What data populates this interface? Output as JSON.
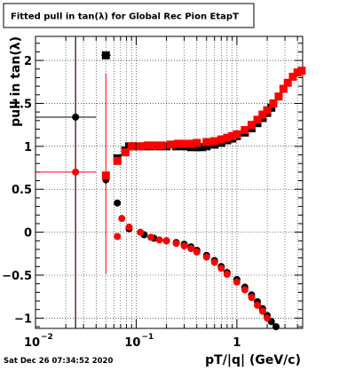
{
  "canvas": {
    "title": "Fitted pull in tan(λ) for Global Rec Pion EtapT",
    "timestamp": "Sat Dec 26 07:34:52 2020"
  },
  "colors": {
    "series_black": "#000000",
    "series_red": "#ff0000",
    "grid": "#000000",
    "background": "#ffffff"
  },
  "chart_data": {
    "type": "scatter",
    "title": "Fitted pull in tan(λ) for Global Rec Pion EtapT",
    "xlabel": "pT/|q| (GeV/c)",
    "ylabel": "pull in tan(λ)",
    "x_scale": "log",
    "xlim": [
      0.01,
      4.5
    ],
    "ylim": [
      -1.12,
      2.28
    ],
    "grid": true,
    "x_ticks": [
      {
        "value": 0.01,
        "base": "10",
        "exp": "−2"
      },
      {
        "value": 0.1,
        "base": "10",
        "exp": "−1"
      },
      {
        "value": 1,
        "base": "1",
        "exp": ""
      }
    ],
    "y_ticks": [
      {
        "value": -1,
        "label": "−1"
      },
      {
        "value": -0.5,
        "label": "−0.5"
      },
      {
        "value": 0,
        "label": "0"
      },
      {
        "value": 0.5,
        "label": "0.5"
      },
      {
        "value": 1,
        "label": "1"
      },
      {
        "value": 1.5,
        "label": "1.5"
      },
      {
        "value": 2,
        "label": "2"
      }
    ],
    "series": [
      {
        "color": "black",
        "marker_square": "square",
        "marker_circle": "circle",
        "squares": [
          {
            "x": 0.05,
            "y": 2.06
          },
          {
            "x": 0.065,
            "y": 0.86
          },
          {
            "x": 0.078,
            "y": 0.95
          },
          {
            "x": 0.085,
            "y": 1.0
          },
          {
            "x": 0.093,
            "y": 1.0
          },
          {
            "x": 0.1,
            "y": 1.0
          },
          {
            "x": 0.12,
            "y": 1.0
          },
          {
            "x": 0.14,
            "y": 1.0
          },
          {
            "x": 0.17,
            "y": 1.0
          },
          {
            "x": 0.2,
            "y": 1.0
          },
          {
            "x": 0.25,
            "y": 1.0
          },
          {
            "x": 0.3,
            "y": 1.0
          },
          {
            "x": 0.35,
            "y": 0.99
          },
          {
            "x": 0.4,
            "y": 0.99
          },
          {
            "x": 0.45,
            "y": 0.99
          },
          {
            "x": 0.5,
            "y": 1.0
          },
          {
            "x": 0.6,
            "y": 1.02
          },
          {
            "x": 0.7,
            "y": 1.04
          },
          {
            "x": 0.8,
            "y": 1.07
          },
          {
            "x": 0.9,
            "y": 1.09
          },
          {
            "x": 1.0,
            "y": 1.12
          },
          {
            "x": 1.2,
            "y": 1.16
          },
          {
            "x": 1.4,
            "y": 1.21
          },
          {
            "x": 1.6,
            "y": 1.27
          },
          {
            "x": 1.8,
            "y": 1.33
          },
          {
            "x": 2.0,
            "y": 1.39
          },
          {
            "x": 2.2,
            "y": 1.45
          }
        ],
        "circles": [
          {
            "x": 0.025,
            "y": 1.34
          },
          {
            "x": 0.05,
            "y": 0.61
          },
          {
            "x": 0.065,
            "y": 0.34
          },
          {
            "x": 0.085,
            "y": 0.04
          },
          {
            "x": 0.12,
            "y": -0.03
          },
          {
            "x": 0.15,
            "y": -0.07
          },
          {
            "x": 0.2,
            "y": -0.1
          },
          {
            "x": 0.25,
            "y": -0.12
          },
          {
            "x": 0.3,
            "y": -0.14
          },
          {
            "x": 0.35,
            "y": -0.17
          },
          {
            "x": 0.4,
            "y": -0.21
          },
          {
            "x": 0.5,
            "y": -0.27
          },
          {
            "x": 0.6,
            "y": -0.33
          },
          {
            "x": 0.7,
            "y": -0.4
          },
          {
            "x": 0.8,
            "y": -0.47
          },
          {
            "x": 1.0,
            "y": -0.55
          },
          {
            "x": 1.2,
            "y": -0.64
          },
          {
            "x": 1.4,
            "y": -0.73
          },
          {
            "x": 1.6,
            "y": -0.81
          },
          {
            "x": 1.8,
            "y": -0.89
          },
          {
            "x": 2.0,
            "y": -0.97
          },
          {
            "x": 2.2,
            "y": -1.04
          },
          {
            "x": 2.45,
            "y": -1.1
          }
        ]
      },
      {
        "color": "red",
        "marker_square": "square",
        "marker_circle": "circle",
        "squares": [
          {
            "x": 0.05,
            "y": 0.66
          },
          {
            "x": 0.065,
            "y": 0.83
          },
          {
            "x": 0.078,
            "y": 0.93
          },
          {
            "x": 0.09,
            "y": 1.0
          },
          {
            "x": 0.11,
            "y": 1.0
          },
          {
            "x": 0.13,
            "y": 1.01
          },
          {
            "x": 0.15,
            "y": 1.01
          },
          {
            "x": 0.18,
            "y": 1.01
          },
          {
            "x": 0.22,
            "y": 1.02
          },
          {
            "x": 0.26,
            "y": 1.03
          },
          {
            "x": 0.3,
            "y": 1.03
          },
          {
            "x": 0.35,
            "y": 1.03
          },
          {
            "x": 0.4,
            "y": 1.04
          },
          {
            "x": 0.5,
            "y": 1.05
          },
          {
            "x": 0.6,
            "y": 1.06
          },
          {
            "x": 0.7,
            "y": 1.08
          },
          {
            "x": 0.8,
            "y": 1.1
          },
          {
            "x": 0.9,
            "y": 1.12
          },
          {
            "x": 1.0,
            "y": 1.14
          },
          {
            "x": 1.2,
            "y": 1.19
          },
          {
            "x": 1.4,
            "y": 1.25
          },
          {
            "x": 1.6,
            "y": 1.31
          },
          {
            "x": 1.8,
            "y": 1.37
          },
          {
            "x": 2.0,
            "y": 1.42
          },
          {
            "x": 2.3,
            "y": 1.5
          },
          {
            "x": 2.6,
            "y": 1.58
          },
          {
            "x": 2.9,
            "y": 1.67
          },
          {
            "x": 3.2,
            "y": 1.74
          },
          {
            "x": 3.6,
            "y": 1.81
          },
          {
            "x": 4.0,
            "y": 1.86
          },
          {
            "x": 4.4,
            "y": 1.88
          }
        ],
        "circles": [
          {
            "x": 0.025,
            "y": 0.7
          },
          {
            "x": 0.065,
            "y": -0.05
          },
          {
            "x": 0.072,
            "y": 0.16
          },
          {
            "x": 0.085,
            "y": 0.06
          },
          {
            "x": 0.11,
            "y": 0.0
          },
          {
            "x": 0.14,
            "y": -0.06
          },
          {
            "x": 0.17,
            "y": -0.09
          },
          {
            "x": 0.2,
            "y": -0.1
          },
          {
            "x": 0.25,
            "y": -0.13
          },
          {
            "x": 0.3,
            "y": -0.16
          },
          {
            "x": 0.35,
            "y": -0.19
          },
          {
            "x": 0.4,
            "y": -0.23
          },
          {
            "x": 0.5,
            "y": -0.29
          },
          {
            "x": 0.6,
            "y": -0.35
          },
          {
            "x": 0.7,
            "y": -0.42
          },
          {
            "x": 0.8,
            "y": -0.49
          },
          {
            "x": 1.0,
            "y": -0.58
          },
          {
            "x": 1.2,
            "y": -0.67
          },
          {
            "x": 1.4,
            "y": -0.76
          },
          {
            "x": 1.6,
            "y": -0.85
          },
          {
            "x": 1.8,
            "y": -0.92
          },
          {
            "x": 2.0,
            "y": -1.0
          }
        ]
      }
    ],
    "error_bars": [
      {
        "color": "black",
        "x": 0.025,
        "y": 1.34,
        "x_lo": 0.01,
        "x_hi": 0.04
      },
      {
        "color": "red",
        "x": 0.025,
        "y": 0.7,
        "x_lo": 0.01,
        "x_hi": 0.04,
        "y_lo": -1.12,
        "y_hi": 2.28
      },
      {
        "color": "black",
        "x": 0.025,
        "y": 1.34,
        "y_lo": -1.12,
        "y_hi": 2.28
      },
      {
        "color": "black",
        "x": 0.05,
        "y": 2.06,
        "x_lo": 0.045,
        "x_hi": 0.056
      },
      {
        "color": "red",
        "x": 0.05,
        "y": 0.66,
        "y_lo": -0.48,
        "y_hi": 1.85
      },
      {
        "color": "black",
        "x": 0.05,
        "y": 0.61,
        "y_lo": 0.56,
        "y_hi": 0.67
      }
    ]
  }
}
